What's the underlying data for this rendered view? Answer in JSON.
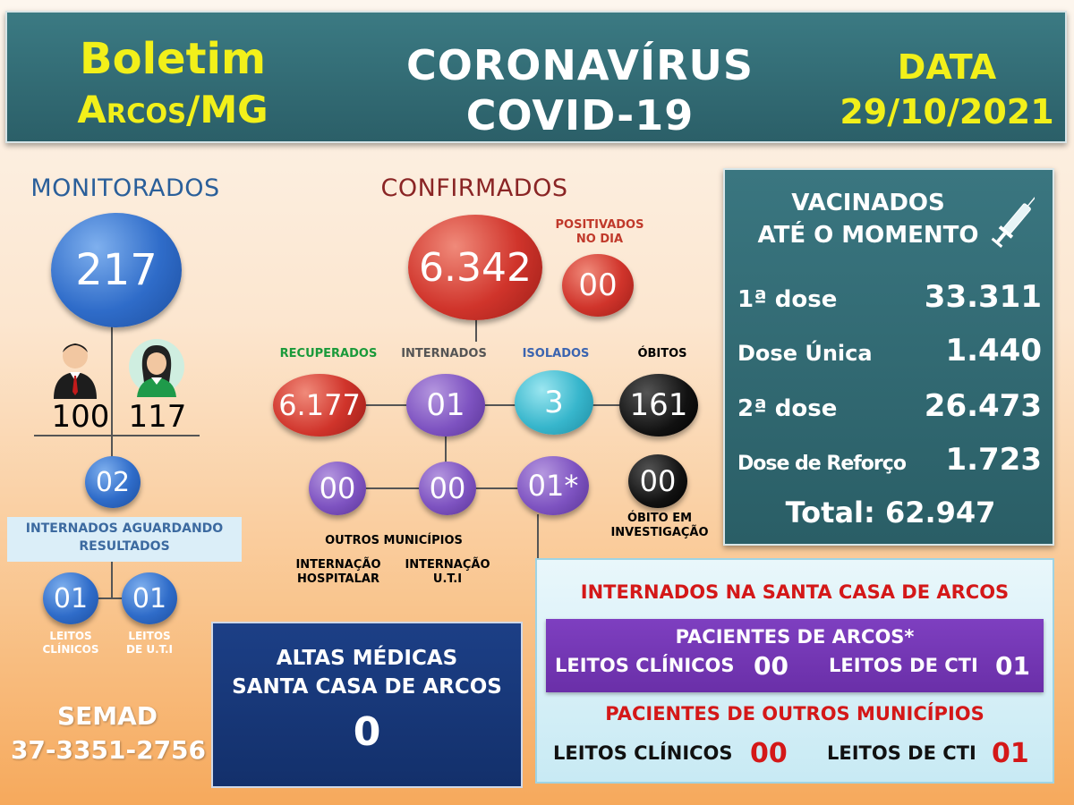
{
  "header": {
    "boletim": "Boletim",
    "arcos": "Arcos/MG",
    "title_line1": "CORONAVÍRUS",
    "title_line2": "COVID-19",
    "data_label": "DATA",
    "date": "29/10/2021"
  },
  "monitorados": {
    "title": "MONITORADOS",
    "total": "217",
    "men": "100",
    "women": "117",
    "awaiting": "02",
    "awaiting_label_line1": "INTERNADOS AGUARDANDO",
    "awaiting_label_line2": "RESULTADOS",
    "leitos_clinicos": "01",
    "leitos_uti": "01",
    "leitos_clinicos_label_line1": "LEITOS",
    "leitos_clinicos_label_line2": "CLÍNICOS",
    "leitos_uti_label_line1": "LEITOS",
    "leitos_uti_label_line2": "DE U.T.I"
  },
  "semad": {
    "name": "SEMAD",
    "phone": "37-3351-2756"
  },
  "confirmados": {
    "title": "CONFIRMADOS",
    "total": "6.342",
    "positivados_label_line1": "POSITIVADOS",
    "positivados_label_line2": "NO DIA",
    "positivados": "00",
    "recuperados_label": "RECUPERADOS",
    "recuperados": "6.177",
    "internados_label": "INTERNADOS",
    "internados": "01",
    "isolados_label": "ISOLADOS",
    "isolados": "3",
    "obitos_label": "ÓBITOS",
    "obitos": "161",
    "outros_municipios": "00",
    "internacao_hospitalar": "00",
    "internacao_uti": "01*",
    "obito_investigacao": "00",
    "outros_municipios_label": "OUTROS MUNICÍPIOS",
    "internacao_hospitalar_label_line1": "INTERNAÇÃO",
    "internacao_hospitalar_label_line2": "HOSPITALAR",
    "internacao_uti_label_line1": "INTERNAÇÃO",
    "internacao_uti_label_line2": "U.T.I",
    "obito_investigacao_label_line1": "ÓBITO EM",
    "obito_investigacao_label_line2": "INVESTIGAÇÃO"
  },
  "vacinados": {
    "title_line1": "VACINADOS",
    "title_line2": "ATÉ O MOMENTO",
    "rows": [
      {
        "label": "1ª dose",
        "value": "33.311"
      },
      {
        "label": "Dose Única",
        "value": "1.440"
      },
      {
        "label": "2ª dose",
        "value": "26.473"
      },
      {
        "label": "Dose de Reforço",
        "value": "1.723"
      }
    ],
    "total": "Total: 62.947"
  },
  "altas": {
    "line1": "ALTAS MÉDICAS",
    "line2": "SANTA CASA DE ARCOS",
    "value": "0"
  },
  "santa_casa": {
    "title": "INTERNADOS NA SANTA CASA DE ARCOS",
    "arcos_title": "PACIENTES DE ARCOS*",
    "arcos_clinicos_label": "LEITOS CLÍNICOS",
    "arcos_clinicos": "00",
    "arcos_cti_label": "LEITOS DE CTI",
    "arcos_cti": "01",
    "outros_title": "PACIENTES DE OUTROS MUNICÍPIOS",
    "outros_clinicos_label": "LEITOS CLÍNICOS",
    "outros_clinicos": "00",
    "outros_cti_label": "LEITOS DE CTI",
    "outros_cti": "01"
  },
  "colors": {
    "header_bg": "#2f6a73",
    "yellow": "#f2f01a",
    "red_text": "#d41818",
    "green_text": "#1a9a3a",
    "blue_title": "#2a5f9a"
  }
}
